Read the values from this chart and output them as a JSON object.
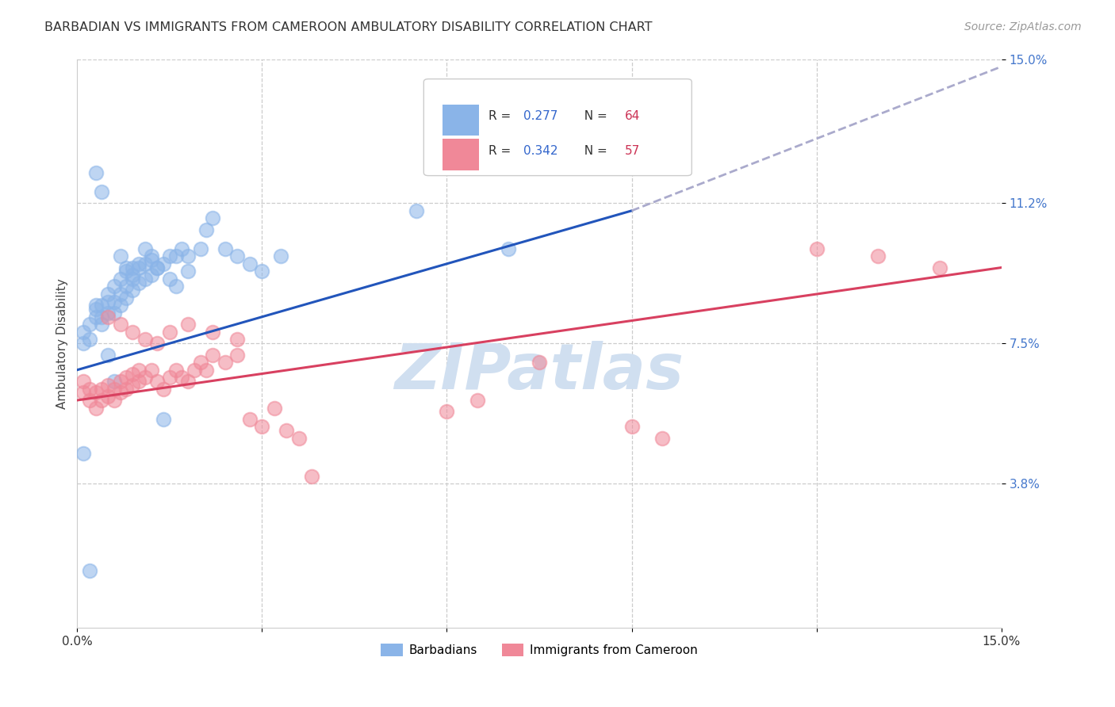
{
  "title": "BARBADIAN VS IMMIGRANTS FROM CAMEROON AMBULATORY DISABILITY CORRELATION CHART",
  "source": "Source: ZipAtlas.com",
  "ylabel": "Ambulatory Disability",
  "xlim": [
    0.0,
    0.15
  ],
  "ylim": [
    0.0,
    0.15
  ],
  "xtick_positions": [
    0.0,
    0.03,
    0.06,
    0.09,
    0.12,
    0.15
  ],
  "xtick_labels": [
    "0.0%",
    "",
    "",
    "",
    "",
    "15.0%"
  ],
  "ytick_positions": [
    0.038,
    0.075,
    0.112,
    0.15
  ],
  "ytick_labels": [
    "3.8%",
    "7.5%",
    "11.2%",
    "15.0%"
  ],
  "barbadian_color": "#8ab4e8",
  "cameroon_color": "#f08898",
  "trend_blue": "#2255bb",
  "trend_pink": "#d84060",
  "trend_dash_color": "#aaaacc",
  "ytick_color": "#4477cc",
  "watermark_text": "ZIPatlas",
  "watermark_color": "#d0dff0",
  "R_barbadian": 0.277,
  "N_barbadian": 64,
  "R_cameroon": 0.342,
  "N_cameroon": 57,
  "blue_trend_start_y": 0.068,
  "blue_trend_end_y_solid": 0.11,
  "blue_trend_solid_x_end": 0.09,
  "blue_trend_end_y_dash": 0.148,
  "pink_trend_start_y": 0.06,
  "pink_trend_end_y": 0.095,
  "barbadian_x": [
    0.001,
    0.001,
    0.002,
    0.002,
    0.003,
    0.003,
    0.003,
    0.004,
    0.004,
    0.004,
    0.005,
    0.005,
    0.005,
    0.006,
    0.006,
    0.006,
    0.007,
    0.007,
    0.007,
    0.008,
    0.008,
    0.008,
    0.009,
    0.009,
    0.009,
    0.01,
    0.01,
    0.011,
    0.011,
    0.012,
    0.012,
    0.013,
    0.014,
    0.014,
    0.015,
    0.016,
    0.017,
    0.018,
    0.02,
    0.021,
    0.022,
    0.024,
    0.026,
    0.028,
    0.03,
    0.033,
    0.007,
    0.008,
    0.009,
    0.01,
    0.011,
    0.012,
    0.013,
    0.015,
    0.016,
    0.018,
    0.005,
    0.006,
    0.003,
    0.004,
    0.055,
    0.07,
    0.001,
    0.002
  ],
  "barbadian_y": [
    0.075,
    0.078,
    0.076,
    0.08,
    0.082,
    0.084,
    0.085,
    0.08,
    0.082,
    0.085,
    0.083,
    0.086,
    0.088,
    0.083,
    0.086,
    0.09,
    0.085,
    0.088,
    0.092,
    0.087,
    0.09,
    0.094,
    0.089,
    0.092,
    0.095,
    0.091,
    0.095,
    0.092,
    0.096,
    0.093,
    0.097,
    0.095,
    0.096,
    0.055,
    0.098,
    0.098,
    0.1,
    0.098,
    0.1,
    0.105,
    0.108,
    0.1,
    0.098,
    0.096,
    0.094,
    0.098,
    0.098,
    0.095,
    0.093,
    0.096,
    0.1,
    0.098,
    0.095,
    0.092,
    0.09,
    0.094,
    0.072,
    0.065,
    0.12,
    0.115,
    0.11,
    0.1,
    0.046,
    0.015
  ],
  "cameroon_x": [
    0.001,
    0.001,
    0.002,
    0.002,
    0.003,
    0.003,
    0.004,
    0.004,
    0.005,
    0.005,
    0.006,
    0.006,
    0.007,
    0.007,
    0.008,
    0.008,
    0.009,
    0.009,
    0.01,
    0.01,
    0.011,
    0.012,
    0.013,
    0.014,
    0.015,
    0.016,
    0.017,
    0.018,
    0.019,
    0.02,
    0.021,
    0.022,
    0.024,
    0.026,
    0.028,
    0.03,
    0.032,
    0.034,
    0.036,
    0.038,
    0.005,
    0.007,
    0.009,
    0.011,
    0.013,
    0.015,
    0.018,
    0.022,
    0.026,
    0.06,
    0.065,
    0.075,
    0.09,
    0.095,
    0.12,
    0.13,
    0.14
  ],
  "cameroon_y": [
    0.062,
    0.065,
    0.06,
    0.063,
    0.058,
    0.062,
    0.06,
    0.063,
    0.061,
    0.064,
    0.06,
    0.063,
    0.062,
    0.065,
    0.063,
    0.066,
    0.064,
    0.067,
    0.065,
    0.068,
    0.066,
    0.068,
    0.065,
    0.063,
    0.066,
    0.068,
    0.066,
    0.065,
    0.068,
    0.07,
    0.068,
    0.072,
    0.07,
    0.072,
    0.055,
    0.053,
    0.058,
    0.052,
    0.05,
    0.04,
    0.082,
    0.08,
    0.078,
    0.076,
    0.075,
    0.078,
    0.08,
    0.078,
    0.076,
    0.057,
    0.06,
    0.07,
    0.053,
    0.05,
    0.1,
    0.098,
    0.095
  ]
}
